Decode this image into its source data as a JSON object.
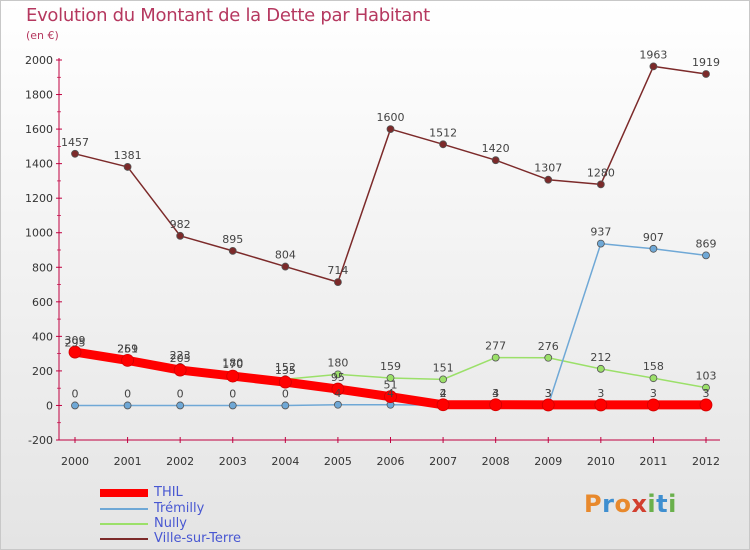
{
  "header": {
    "title": "Evolution du Montant de la Dette par Habitant",
    "unit": "(en €)"
  },
  "brand": {
    "letters": [
      "P",
      "r",
      "o",
      "x",
      "i",
      "t",
      "i"
    ],
    "colors": [
      "#e8892c",
      "#3f8fd0",
      "#e8892c",
      "#d23f2f",
      "#6ab04c",
      "#3f8fd0",
      "#6ab04c"
    ]
  },
  "chart_data": {
    "type": "line",
    "x": [
      "2000",
      "2001",
      "2002",
      "2003",
      "2004",
      "2005",
      "2006",
      "2007",
      "2008",
      "2009",
      "2010",
      "2011",
      "2012"
    ],
    "ylim": [
      -200,
      2000
    ],
    "yticks": [
      -200,
      0,
      200,
      400,
      600,
      800,
      1000,
      1200,
      1400,
      1600,
      1800,
      2000
    ],
    "grid": false,
    "legend": "bottom-left",
    "series": [
      {
        "name": "THIL",
        "color": "#ff0000",
        "values": [
          309,
          261,
          205,
          170,
          135,
          95,
          51,
          4,
          4,
          3,
          3,
          3,
          3
        ]
      },
      {
        "name": "Trémilly",
        "color": "#6fa8d6",
        "values": [
          0,
          0,
          0,
          0,
          0,
          4,
          4,
          2,
          3,
          3,
          937,
          907,
          869
        ]
      },
      {
        "name": "Nully",
        "color": "#9be069",
        "values": [
          295,
          259,
          223,
          180,
          152,
          180,
          159,
          151,
          277,
          276,
          212,
          158,
          103
        ]
      },
      {
        "name": "Ville-sur-Terre",
        "color": "#7c2a2a",
        "values": [
          1457,
          1381,
          982,
          895,
          804,
          714,
          1600,
          1512,
          1420,
          1307,
          1280,
          1963,
          1919
        ]
      }
    ]
  }
}
